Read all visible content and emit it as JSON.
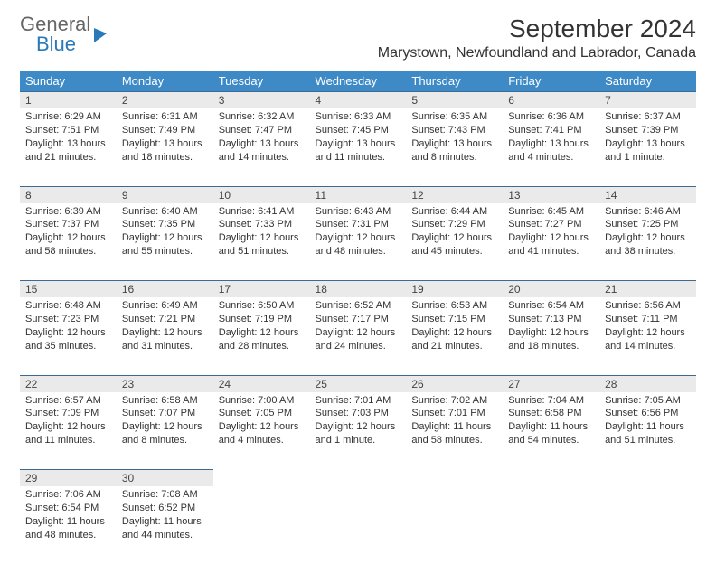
{
  "logo": {
    "line1": "General",
    "line2": "Blue"
  },
  "title": "September 2024",
  "location": "Marystown, Newfoundland and Labrador, Canada",
  "colors": {
    "header_bg": "#3d8ac7",
    "daynum_bg": "#eaeaea",
    "border": "#3d6a94"
  },
  "weekdays": [
    "Sunday",
    "Monday",
    "Tuesday",
    "Wednesday",
    "Thursday",
    "Friday",
    "Saturday"
  ],
  "weeks": [
    {
      "days": [
        {
          "num": "1",
          "sunrise": "Sunrise: 6:29 AM",
          "sunset": "Sunset: 7:51 PM",
          "daylight": "Daylight: 13 hours and 21 minutes."
        },
        {
          "num": "2",
          "sunrise": "Sunrise: 6:31 AM",
          "sunset": "Sunset: 7:49 PM",
          "daylight": "Daylight: 13 hours and 18 minutes."
        },
        {
          "num": "3",
          "sunrise": "Sunrise: 6:32 AM",
          "sunset": "Sunset: 7:47 PM",
          "daylight": "Daylight: 13 hours and 14 minutes."
        },
        {
          "num": "4",
          "sunrise": "Sunrise: 6:33 AM",
          "sunset": "Sunset: 7:45 PM",
          "daylight": "Daylight: 13 hours and 11 minutes."
        },
        {
          "num": "5",
          "sunrise": "Sunrise: 6:35 AM",
          "sunset": "Sunset: 7:43 PM",
          "daylight": "Daylight: 13 hours and 8 minutes."
        },
        {
          "num": "6",
          "sunrise": "Sunrise: 6:36 AM",
          "sunset": "Sunset: 7:41 PM",
          "daylight": "Daylight: 13 hours and 4 minutes."
        },
        {
          "num": "7",
          "sunrise": "Sunrise: 6:37 AM",
          "sunset": "Sunset: 7:39 PM",
          "daylight": "Daylight: 13 hours and 1 minute."
        }
      ]
    },
    {
      "days": [
        {
          "num": "8",
          "sunrise": "Sunrise: 6:39 AM",
          "sunset": "Sunset: 7:37 PM",
          "daylight": "Daylight: 12 hours and 58 minutes."
        },
        {
          "num": "9",
          "sunrise": "Sunrise: 6:40 AM",
          "sunset": "Sunset: 7:35 PM",
          "daylight": "Daylight: 12 hours and 55 minutes."
        },
        {
          "num": "10",
          "sunrise": "Sunrise: 6:41 AM",
          "sunset": "Sunset: 7:33 PM",
          "daylight": "Daylight: 12 hours and 51 minutes."
        },
        {
          "num": "11",
          "sunrise": "Sunrise: 6:43 AM",
          "sunset": "Sunset: 7:31 PM",
          "daylight": "Daylight: 12 hours and 48 minutes."
        },
        {
          "num": "12",
          "sunrise": "Sunrise: 6:44 AM",
          "sunset": "Sunset: 7:29 PM",
          "daylight": "Daylight: 12 hours and 45 minutes."
        },
        {
          "num": "13",
          "sunrise": "Sunrise: 6:45 AM",
          "sunset": "Sunset: 7:27 PM",
          "daylight": "Daylight: 12 hours and 41 minutes."
        },
        {
          "num": "14",
          "sunrise": "Sunrise: 6:46 AM",
          "sunset": "Sunset: 7:25 PM",
          "daylight": "Daylight: 12 hours and 38 minutes."
        }
      ]
    },
    {
      "days": [
        {
          "num": "15",
          "sunrise": "Sunrise: 6:48 AM",
          "sunset": "Sunset: 7:23 PM",
          "daylight": "Daylight: 12 hours and 35 minutes."
        },
        {
          "num": "16",
          "sunrise": "Sunrise: 6:49 AM",
          "sunset": "Sunset: 7:21 PM",
          "daylight": "Daylight: 12 hours and 31 minutes."
        },
        {
          "num": "17",
          "sunrise": "Sunrise: 6:50 AM",
          "sunset": "Sunset: 7:19 PM",
          "daylight": "Daylight: 12 hours and 28 minutes."
        },
        {
          "num": "18",
          "sunrise": "Sunrise: 6:52 AM",
          "sunset": "Sunset: 7:17 PM",
          "daylight": "Daylight: 12 hours and 24 minutes."
        },
        {
          "num": "19",
          "sunrise": "Sunrise: 6:53 AM",
          "sunset": "Sunset: 7:15 PM",
          "daylight": "Daylight: 12 hours and 21 minutes."
        },
        {
          "num": "20",
          "sunrise": "Sunrise: 6:54 AM",
          "sunset": "Sunset: 7:13 PM",
          "daylight": "Daylight: 12 hours and 18 minutes."
        },
        {
          "num": "21",
          "sunrise": "Sunrise: 6:56 AM",
          "sunset": "Sunset: 7:11 PM",
          "daylight": "Daylight: 12 hours and 14 minutes."
        }
      ]
    },
    {
      "days": [
        {
          "num": "22",
          "sunrise": "Sunrise: 6:57 AM",
          "sunset": "Sunset: 7:09 PM",
          "daylight": "Daylight: 12 hours and 11 minutes."
        },
        {
          "num": "23",
          "sunrise": "Sunrise: 6:58 AM",
          "sunset": "Sunset: 7:07 PM",
          "daylight": "Daylight: 12 hours and 8 minutes."
        },
        {
          "num": "24",
          "sunrise": "Sunrise: 7:00 AM",
          "sunset": "Sunset: 7:05 PM",
          "daylight": "Daylight: 12 hours and 4 minutes."
        },
        {
          "num": "25",
          "sunrise": "Sunrise: 7:01 AM",
          "sunset": "Sunset: 7:03 PM",
          "daylight": "Daylight: 12 hours and 1 minute."
        },
        {
          "num": "26",
          "sunrise": "Sunrise: 7:02 AM",
          "sunset": "Sunset: 7:01 PM",
          "daylight": "Daylight: 11 hours and 58 minutes."
        },
        {
          "num": "27",
          "sunrise": "Sunrise: 7:04 AM",
          "sunset": "Sunset: 6:58 PM",
          "daylight": "Daylight: 11 hours and 54 minutes."
        },
        {
          "num": "28",
          "sunrise": "Sunrise: 7:05 AM",
          "sunset": "Sunset: 6:56 PM",
          "daylight": "Daylight: 11 hours and 51 minutes."
        }
      ]
    },
    {
      "days": [
        {
          "num": "29",
          "sunrise": "Sunrise: 7:06 AM",
          "sunset": "Sunset: 6:54 PM",
          "daylight": "Daylight: 11 hours and 48 minutes."
        },
        {
          "num": "30",
          "sunrise": "Sunrise: 7:08 AM",
          "sunset": "Sunset: 6:52 PM",
          "daylight": "Daylight: 11 hours and 44 minutes."
        },
        {
          "empty": true
        },
        {
          "empty": true
        },
        {
          "empty": true
        },
        {
          "empty": true
        },
        {
          "empty": true
        }
      ]
    }
  ]
}
